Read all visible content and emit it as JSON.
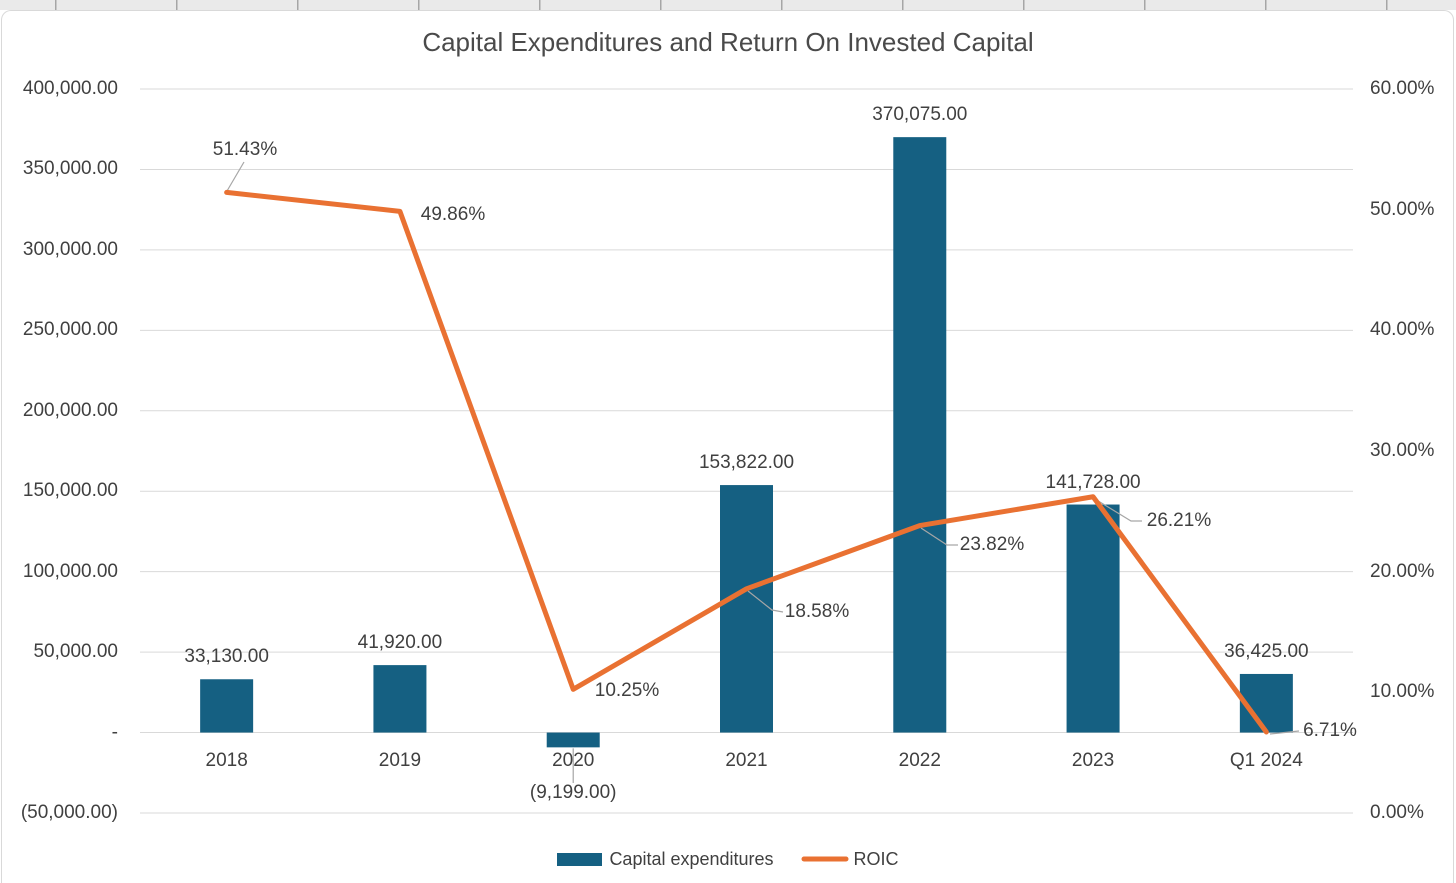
{
  "chart_data": {
    "type": "combo_bar_line",
    "title": "Capital Expenditures and Return On Invested Capital",
    "categories": [
      "2018",
      "2019",
      "2020",
      "2021",
      "2022",
      "2023",
      "Q1 2024"
    ],
    "series": [
      {
        "name": "Capital expenditures",
        "type": "bar",
        "axis": "left",
        "color": "#156082",
        "values": [
          33130,
          41920,
          -9199,
          153822,
          370075,
          141728,
          36425
        ],
        "data_labels": [
          "33,130.00",
          "41,920.00",
          "(9,199.00)",
          "153,822.00",
          "370,075.00",
          "141,728.00",
          "36,425.00"
        ]
      },
      {
        "name": "ROIC",
        "type": "line",
        "axis": "right",
        "color": "#E97132",
        "values": [
          51.43,
          49.86,
          10.25,
          18.58,
          23.82,
          26.21,
          6.71
        ],
        "data_labels": [
          "51.43%",
          "49.86%",
          "10.25%",
          "18.58%",
          "23.82%",
          "26.21%",
          "6.71%"
        ]
      }
    ],
    "axes": {
      "left": {
        "min": -50000,
        "max": 400000,
        "step": 50000,
        "tick_labels": [
          "400,000.00",
          "350,000.00",
          "300,000.00",
          "250,000.00",
          "200,000.00",
          "150,000.00",
          "100,000.00",
          "50,000.00",
          "-",
          "(50,000.00)"
        ]
      },
      "right": {
        "min": 0,
        "max": 60,
        "step": 10,
        "tick_labels": [
          "60.00%",
          "50.00%",
          "40.00%",
          "30.00%",
          "20.00%",
          "10.00%",
          "0.00%"
        ]
      }
    },
    "grid": true,
    "legend_position": "bottom"
  },
  "colors": {
    "bar": "#156082",
    "line": "#E97132",
    "grid": "#D9D9D9",
    "leader": "#A6A6A6",
    "text": "#404040",
    "title_text": "#4A4A4A",
    "chart_border": "#D9D9D9",
    "sheet_strip_bg": "#EAEAEA",
    "sheet_strip_tick": "#A6A6A6"
  }
}
